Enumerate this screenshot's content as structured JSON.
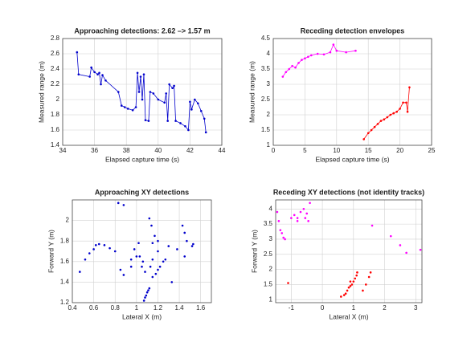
{
  "chart_data": [
    {
      "type": "line",
      "title": "Approaching detections: 2.62 –> 1.57 m",
      "xlabel": "Elapsed capture time (s)",
      "ylabel": "Measured range (m)",
      "xlim": [
        34,
        44
      ],
      "xticks": [
        34,
        36,
        38,
        40,
        42,
        44
      ],
      "ylim": [
        1.4,
        2.8
      ],
      "yticks": [
        1.4,
        1.6,
        1.8,
        2,
        2.2,
        2.4,
        2.6,
        2.8
      ],
      "grid": true,
      "series": [
        {
          "color": "#0000cc",
          "x": [
            34.9,
            35.0,
            35.7,
            35.8,
            36.0,
            36.2,
            36.3,
            36.4,
            36.5,
            36.7,
            37.5,
            37.7,
            37.9,
            38.1,
            38.4,
            38.6,
            38.7,
            38.8,
            38.9,
            39.0,
            39.1,
            39.2,
            39.4,
            39.5,
            39.7,
            40.0,
            40.4,
            40.5,
            40.6,
            40.7,
            40.9,
            41.0,
            41.1,
            41.4,
            41.7,
            41.9,
            42.0,
            42.1,
            42.3,
            42.5,
            42.7,
            42.9,
            43.0
          ],
          "values": [
            2.62,
            2.33,
            2.3,
            2.42,
            2.36,
            2.33,
            2.35,
            2.2,
            2.32,
            2.25,
            2.1,
            1.92,
            1.9,
            1.88,
            1.86,
            1.9,
            2.35,
            2.1,
            2.3,
            2.0,
            2.33,
            1.73,
            1.72,
            2.1,
            2.08,
            2.0,
            1.96,
            2.08,
            1.72,
            2.2,
            2.15,
            2.18,
            1.72,
            1.69,
            1.65,
            1.6,
            1.97,
            1.87,
            2.0,
            1.95,
            1.85,
            1.75,
            1.57
          ]
        }
      ]
    },
    {
      "type": "line",
      "title": "Receding detection envelopes",
      "xlabel": "Elapsed capture time (s)",
      "ylabel": "Measured range (m)",
      "xlim": [
        0,
        25
      ],
      "xticks": [
        0,
        5,
        10,
        15,
        20,
        25
      ],
      "ylim": [
        1,
        4.5
      ],
      "yticks": [
        1,
        1.5,
        2,
        2.5,
        3,
        3.5,
        4,
        4.5
      ],
      "grid": true,
      "series": [
        {
          "color": "#ff00ff",
          "x": [
            1.5,
            2,
            2.5,
            3,
            3.5,
            4,
            4.5,
            5,
            5.5,
            6,
            7,
            8,
            9,
            9.5,
            10,
            11.5,
            13
          ],
          "values": [
            3.25,
            3.4,
            3.5,
            3.6,
            3.55,
            3.7,
            3.8,
            3.85,
            3.9,
            3.95,
            4.0,
            3.98,
            4.05,
            4.3,
            4.1,
            4.05,
            4.1
          ]
        },
        {
          "color": "#ff0000",
          "x": [
            14.3,
            15,
            15.5,
            16,
            16.5,
            17,
            17.5,
            18,
            18.5,
            19,
            19.5,
            20,
            20.5,
            21,
            21.2,
            21.5
          ],
          "values": [
            1.2,
            1.4,
            1.5,
            1.6,
            1.7,
            1.8,
            1.85,
            1.92,
            2.0,
            2.05,
            2.1,
            2.2,
            2.4,
            2.4,
            2.1,
            2.9
          ]
        }
      ]
    },
    {
      "type": "scatter",
      "title": "Approaching XY detections",
      "xlabel": "Lateral X (m)",
      "ylabel": "Forward Y (m)",
      "xlim": [
        0.4,
        1.7
      ],
      "xticks": [
        0.4,
        0.6,
        0.8,
        1,
        1.2,
        1.4,
        1.6
      ],
      "ylim": [
        1.2,
        2.2
      ],
      "yticks": [
        1.2,
        1.4,
        1.6,
        1.8,
        2
      ],
      "grid": true,
      "series": [
        {
          "color": "#0000cc",
          "x": [
            0.47,
            0.52,
            0.56,
            0.6,
            0.62,
            0.65,
            0.7,
            0.75,
            0.8,
            0.83,
            0.88,
            0.85,
            0.88,
            0.95,
            0.95,
            0.98,
            1.0,
            1.02,
            1.03,
            1.05,
            1.06,
            1.07,
            1.08,
            1.09,
            1.1,
            1.11,
            1.12,
            1.08,
            1.13,
            1.15,
            1.15,
            1.18,
            1.2,
            1.22,
            1.25,
            1.27,
            1.15,
            1.17,
            1.2,
            1.12,
            1.14,
            1.2,
            1.3,
            1.33,
            1.38,
            1.43,
            1.45,
            1.47,
            1.45,
            1.52,
            1.53
          ],
          "values": [
            1.5,
            1.62,
            1.68,
            1.72,
            1.76,
            1.77,
            1.76,
            1.73,
            1.7,
            2.17,
            2.15,
            1.52,
            1.47,
            1.55,
            1.62,
            1.72,
            1.65,
            1.78,
            1.65,
            1.55,
            1.6,
            1.22,
            1.25,
            1.27,
            1.3,
            1.32,
            1.34,
            1.5,
            1.55,
            1.62,
            1.45,
            1.48,
            1.52,
            1.55,
            1.6,
            1.62,
            1.78,
            1.85,
            1.8,
            2.02,
            1.95,
            1.7,
            1.75,
            1.4,
            1.72,
            1.95,
            1.88,
            1.8,
            1.65,
            1.75,
            1.77
          ]
        }
      ]
    },
    {
      "type": "scatter",
      "title": "Receding XY detections (not identity tracks)",
      "xlabel": "Lateral X (m)",
      "ylabel": "Forward Y (m)",
      "xlim": [
        -1.5,
        3.2
      ],
      "xticks": [
        -1,
        0,
        1,
        2,
        3
      ],
      "ylim": [
        0.9,
        4.3
      ],
      "yticks": [
        1,
        1.5,
        2,
        2.5,
        3,
        3.5,
        4
      ],
      "grid": true,
      "series": [
        {
          "color": "#ff00ff",
          "x": [
            -1.45,
            -1.4,
            -1.35,
            -1.3,
            -1.25,
            -1.2,
            -1.0,
            -0.9,
            -0.8,
            -0.7,
            -0.6,
            -0.5,
            -0.45,
            -0.4,
            -0.8,
            -0.55,
            1.6,
            2.2,
            2.5,
            2.7,
            3.15
          ],
          "values": [
            3.9,
            3.6,
            3.3,
            3.2,
            3.05,
            3.0,
            3.7,
            3.8,
            3.7,
            3.9,
            4.0,
            3.85,
            3.6,
            4.2,
            3.6,
            3.7,
            3.45,
            3.1,
            2.8,
            2.55,
            2.65
          ]
        },
        {
          "color": "#ff0000",
          "x": [
            -1.1,
            0.6,
            0.7,
            0.75,
            0.8,
            0.85,
            0.9,
            0.95,
            1.0,
            1.05,
            1.1,
            1.12,
            0.9,
            1.3,
            1.4,
            1.5,
            1.55
          ],
          "values": [
            1.55,
            1.1,
            1.15,
            1.2,
            1.3,
            1.4,
            1.45,
            1.5,
            1.6,
            1.7,
            1.8,
            1.9,
            1.6,
            1.3,
            1.5,
            1.75,
            1.9
          ]
        }
      ]
    }
  ]
}
